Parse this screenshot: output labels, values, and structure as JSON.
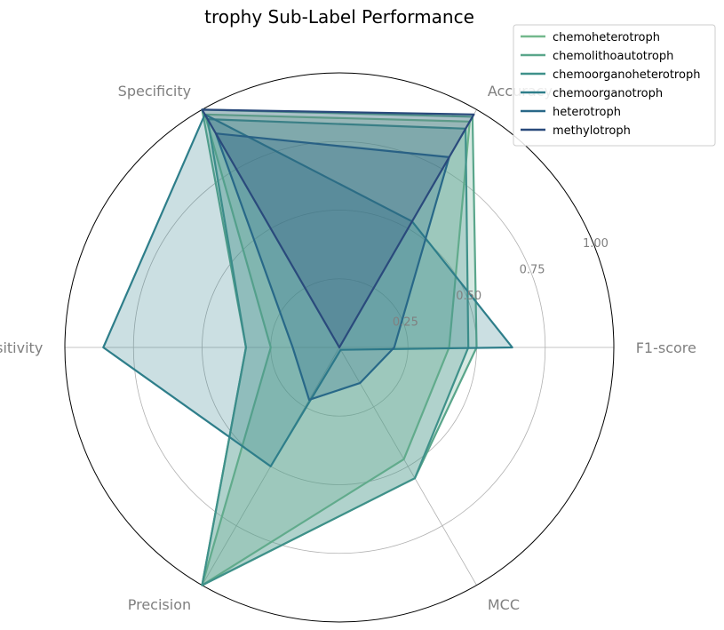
{
  "chart_data": {
    "type": "radar",
    "title": "trophy Sub-Label Performance",
    "axes": [
      "F1-score",
      "Accuracy",
      "Specificity",
      "Sensitivity",
      "Precision",
      "MCC"
    ],
    "rlim": [
      0,
      1
    ],
    "rticks": [
      0.25,
      0.5,
      0.75,
      1.0
    ],
    "rtick_labels": [
      "0.25",
      "0.50",
      "0.75",
      "1.00"
    ],
    "legend_position": "top-right",
    "series": [
      {
        "name": "chemoheterotroph",
        "color": "#73b88c",
        "values": [
          0.4,
          0.95,
          0.98,
          0.25,
          1.0,
          0.47
        ]
      },
      {
        "name": "chemolithoautotroph",
        "color": "#5aa68b",
        "values": [
          0.5,
          0.97,
          1.0,
          0.34,
          1.0,
          0.55
        ]
      },
      {
        "name": "chemoorganoheterotroph",
        "color": "#3f918a",
        "values": [
          0.47,
          0.92,
          0.96,
          0.34,
          1.0,
          0.55
        ]
      },
      {
        "name": "chemoorganotroph",
        "color": "#2e7e8a",
        "values": [
          0.63,
          0.53,
          0.98,
          0.86,
          0.5,
          0.01
        ]
      },
      {
        "name": "heterotroph",
        "color": "#286888",
        "values": [
          0.2,
          0.8,
          0.9,
          0.17,
          0.22,
          0.15
        ]
      },
      {
        "name": "methylotroph",
        "color": "#2a4a7c",
        "values": [
          0.0,
          0.98,
          1.0,
          0.0,
          0.0,
          0.0
        ]
      }
    ]
  }
}
